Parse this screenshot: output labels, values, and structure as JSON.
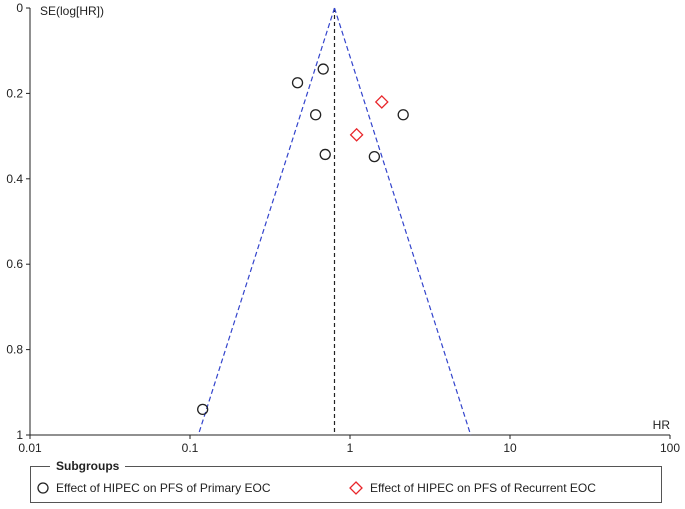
{
  "chart_data": {
    "type": "scatter",
    "subtype": "funnel-plot",
    "xlabel": "HR",
    "ylabel": "SE(log[HR])",
    "x_scale": "log",
    "xlim": [
      0.01,
      100
    ],
    "ylim": [
      0,
      1
    ],
    "y_inverted": true,
    "x_ticks": [
      "0.01",
      "0.1",
      "1",
      "10",
      "100"
    ],
    "y_ticks": [
      "0",
      "0.2",
      "0.4",
      "0.6",
      "0.8",
      "1"
    ],
    "pooled_estimate": 0.8,
    "funnel_color": "#3344cc",
    "pooled_line_color": "#222222",
    "series": [
      {
        "name": "Effect of HIPEC on PFS of Primary EOC",
        "marker": "circle",
        "color": "#222222",
        "points": [
          {
            "x": 0.68,
            "y": 0.143
          },
          {
            "x": 0.47,
            "y": 0.175
          },
          {
            "x": 0.61,
            "y": 0.25
          },
          {
            "x": 2.15,
            "y": 0.25
          },
          {
            "x": 0.7,
            "y": 0.343
          },
          {
            "x": 1.42,
            "y": 0.348
          },
          {
            "x": 0.12,
            "y": 0.94
          }
        ]
      },
      {
        "name": "Effect of HIPEC on PFS of Recurrent EOC",
        "marker": "diamond",
        "color": "#e8262b",
        "points": [
          {
            "x": 1.58,
            "y": 0.22
          },
          {
            "x": 1.1,
            "y": 0.297
          }
        ]
      }
    ],
    "legend": {
      "title": "Subgroups",
      "placement": "bottom"
    }
  }
}
